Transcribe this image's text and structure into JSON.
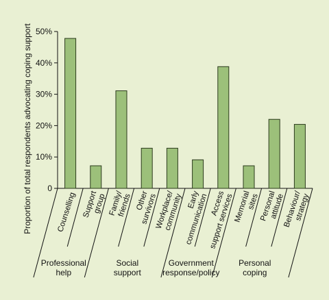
{
  "chart_data": {
    "type": "bar",
    "title": "",
    "ylabel": "Proportion of total respondents advocating coping support",
    "xlabel": "",
    "ylim": [
      0,
      50
    ],
    "ytick_values": [
      0,
      10,
      20,
      30,
      40,
      50
    ],
    "ytick_labels": [
      "0",
      "10%",
      "20%",
      "30%",
      "40%",
      "50%"
    ],
    "categories": [
      [
        "Counselling"
      ],
      [
        "Support",
        "group"
      ],
      [
        "Family/",
        "friends"
      ],
      [
        "Other",
        "survivors"
      ],
      [
        "Workplace/",
        "community"
      ],
      [
        "Early",
        "communication"
      ],
      [
        "Access",
        "support services"
      ],
      [
        "Memorial",
        "sites"
      ],
      [
        "Personal",
        "attitude"
      ],
      [
        "Behaviour/",
        "strategy"
      ]
    ],
    "values": [
      47.8,
      7.2,
      31.1,
      12.8,
      12.8,
      9.1,
      38.8,
      7.2,
      22.0,
      20.4
    ],
    "bar_color": "#9cc07a",
    "bar_edge_color": "#2b3a1c",
    "groups": [
      {
        "lines": [
          "Professional",
          "help"
        ],
        "categories": [
          0,
          1
        ]
      },
      {
        "lines": [
          "Social",
          "support"
        ],
        "categories": [
          2,
          3,
          4
        ]
      },
      {
        "lines": [
          "Government",
          "response/policy"
        ],
        "categories": [
          5,
          6
        ]
      },
      {
        "lines": [
          "Personal",
          "coping"
        ],
        "categories": [
          7,
          8,
          9
        ]
      }
    ],
    "grid": false,
    "legend": "none"
  }
}
